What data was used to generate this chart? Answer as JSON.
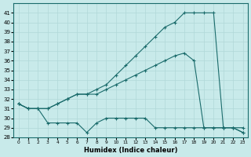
{
  "xlabel": "Humidex (Indice chaleur)",
  "ylabel": "",
  "background_color": "#c8eaea",
  "grid_color": "#b0d8d8",
  "line_color": "#1a6b6b",
  "xlim": [
    -0.5,
    23.5
  ],
  "ylim": [
    28,
    42
  ],
  "yticks": [
    28,
    29,
    30,
    31,
    32,
    33,
    34,
    35,
    36,
    37,
    38,
    39,
    40,
    41
  ],
  "xtick_positions": [
    0,
    1,
    2,
    3,
    4,
    5,
    6,
    7,
    8,
    9,
    10,
    11,
    12,
    13,
    14,
    15,
    16,
    17,
    18,
    19,
    20,
    21,
    22,
    23
  ],
  "xtick_labels": [
    "0",
    "1",
    "2",
    "3",
    "4",
    "5",
    "6",
    "7",
    "8",
    "9",
    "10",
    "11",
    "12",
    "13",
    "14",
    "15",
    "16",
    "17",
    "18",
    "19",
    "20",
    "21",
    "22",
    "23"
  ],
  "series": [
    {
      "x": [
        0,
        1,
        2,
        3,
        4,
        5,
        6,
        7,
        8,
        9,
        10,
        11,
        12,
        13,
        14,
        15,
        16,
        17,
        18,
        19,
        20,
        21,
        22,
        23
      ],
      "y": [
        31.5,
        31.0,
        31.0,
        29.5,
        29.5,
        29.5,
        29.5,
        28.5,
        29.5,
        30.0,
        30.0,
        30.0,
        30.0,
        30.0,
        29.0,
        29.0,
        29.0,
        29.0,
        29.0,
        29.0,
        29.0,
        29.0,
        29.0,
        28.5
      ]
    },
    {
      "x": [
        0,
        1,
        2,
        3,
        4,
        5,
        6,
        7,
        8,
        9,
        10,
        11,
        12,
        13,
        14,
        15,
        16,
        17,
        18,
        19,
        20,
        21,
        22,
        23
      ],
      "y": [
        31.5,
        31.0,
        31.0,
        31.0,
        31.5,
        32.0,
        32.5,
        32.5,
        32.5,
        33.0,
        33.5,
        34.0,
        34.5,
        35.0,
        35.5,
        36.0,
        36.5,
        36.8,
        36.0,
        29.0,
        29.0,
        29.0,
        29.0,
        29.0
      ]
    },
    {
      "x": [
        0,
        1,
        2,
        3,
        4,
        5,
        6,
        7,
        8,
        9,
        10,
        11,
        12,
        13,
        14,
        15,
        16,
        17,
        18,
        19,
        20,
        21,
        22,
        23
      ],
      "y": [
        31.5,
        31.0,
        31.0,
        31.0,
        31.5,
        32.0,
        32.5,
        32.5,
        33.0,
        33.5,
        34.5,
        35.5,
        36.5,
        37.5,
        38.5,
        39.5,
        40.0,
        41.0,
        41.0,
        41.0,
        41.0,
        29.0,
        29.0,
        28.5
      ]
    }
  ]
}
